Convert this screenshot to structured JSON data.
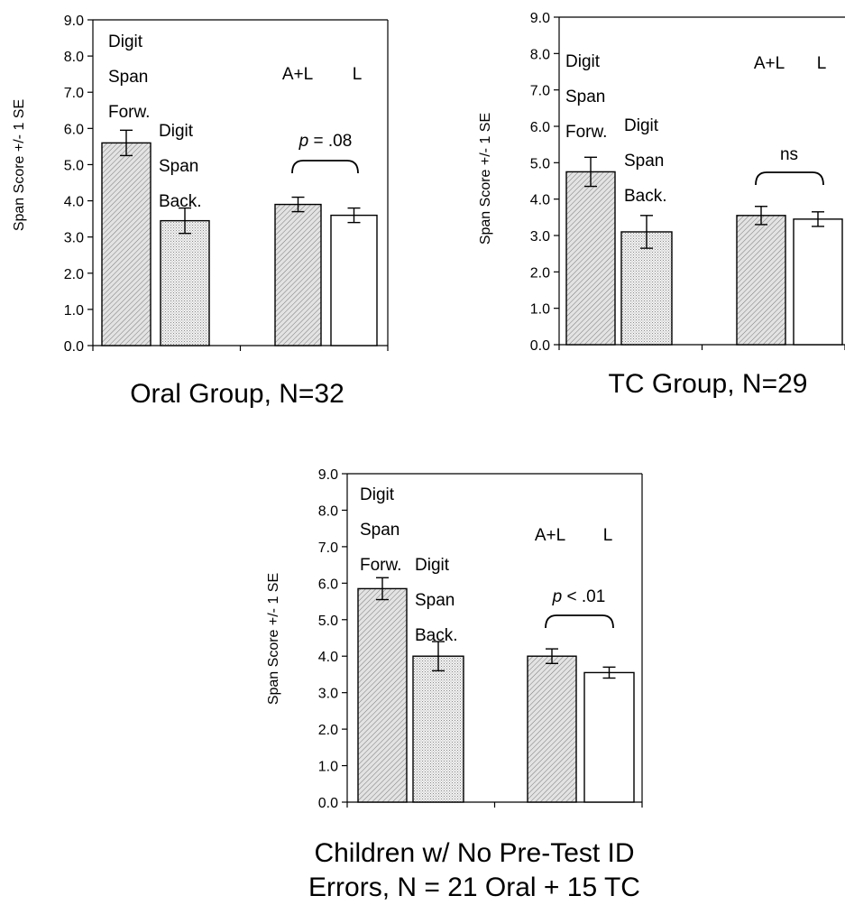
{
  "colors": {
    "axis": "#000000",
    "hatch_bar": "#d9d9d9",
    "dot_bar": "#eeeeee",
    "open_bar": "#ffffff"
  },
  "chart_data": [
    {
      "type": "bar",
      "ylabel": "Span Score +/- 1 SE",
      "ylim": [
        0,
        9
      ],
      "yticks": [
        "0.0",
        "1.0",
        "2.0",
        "3.0",
        "4.0",
        "5.0",
        "6.0",
        "7.0",
        "8.0",
        "9.0"
      ],
      "bars": [
        {
          "value": 5.6,
          "error": 0.35,
          "pattern": "hatch"
        },
        {
          "value": 3.45,
          "error": 0.35,
          "pattern": "dots"
        },
        {
          "value": 3.9,
          "error": 0.2,
          "pattern": "hatch"
        },
        {
          "value": 3.6,
          "error": 0.2,
          "pattern": "open"
        }
      ],
      "labels": {
        "forward": [
          "Digit",
          "Span",
          "Forw."
        ],
        "backward": [
          "Digit",
          "Span",
          "Back."
        ],
        "al": "A+L",
        "l": "L",
        "significance_p": "p",
        "significance_rest": " = .08"
      },
      "caption": [
        "Oral Group, N=32"
      ]
    },
    {
      "type": "bar",
      "ylabel": "Span Score +/- 1 SE",
      "ylim": [
        0,
        9
      ],
      "yticks": [
        "0.0",
        "1.0",
        "2.0",
        "3.0",
        "4.0",
        "5.0",
        "6.0",
        "7.0",
        "8.0",
        "9.0"
      ],
      "bars": [
        {
          "value": 4.75,
          "error": 0.4,
          "pattern": "hatch"
        },
        {
          "value": 3.1,
          "error": 0.45,
          "pattern": "dots"
        },
        {
          "value": 3.55,
          "error": 0.25,
          "pattern": "hatch"
        },
        {
          "value": 3.45,
          "error": 0.2,
          "pattern": "open"
        }
      ],
      "labels": {
        "forward": [
          "Digit",
          "Span",
          "Forw."
        ],
        "backward": [
          "Digit",
          "Span",
          "Back."
        ],
        "al": "A+L",
        "l": "L",
        "significance_p": "",
        "significance_rest": "ns"
      },
      "caption": [
        "TC Group, N=29"
      ]
    },
    {
      "type": "bar",
      "ylabel": "Span Score +/- 1 SE",
      "ylim": [
        0,
        9
      ],
      "yticks": [
        "0.0",
        "1.0",
        "2.0",
        "3.0",
        "4.0",
        "5.0",
        "6.0",
        "7.0",
        "8.0",
        "9.0"
      ],
      "bars": [
        {
          "value": 5.85,
          "error": 0.3,
          "pattern": "hatch"
        },
        {
          "value": 4.0,
          "error": 0.4,
          "pattern": "dots"
        },
        {
          "value": 4.0,
          "error": 0.2,
          "pattern": "hatch"
        },
        {
          "value": 3.55,
          "error": 0.15,
          "pattern": "open"
        }
      ],
      "labels": {
        "forward": [
          "Digit",
          "Span",
          "Forw."
        ],
        "backward": [
          "Digit",
          "Span",
          "Back."
        ],
        "al": "A+L",
        "l": "L",
        "significance_p": "p",
        "significance_rest": " < .01"
      },
      "caption": [
        "Children w/ No Pre-Test ID",
        "Errors, N = 21 Oral + 15 TC"
      ]
    }
  ]
}
